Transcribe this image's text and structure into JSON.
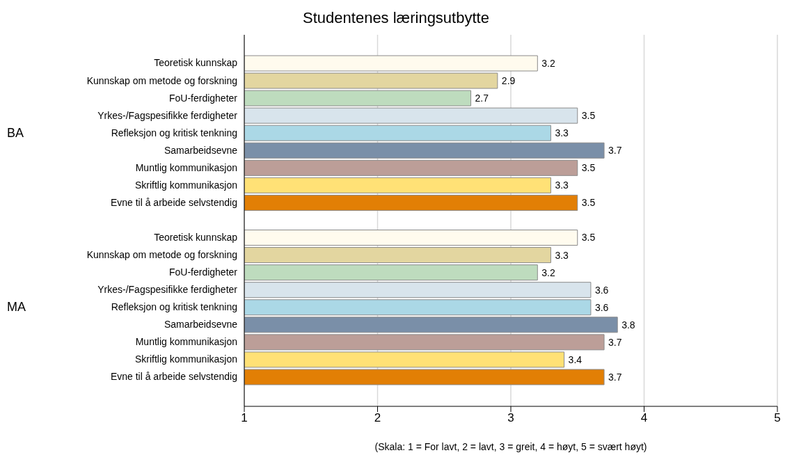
{
  "chart_data": {
    "type": "bar",
    "orientation": "horizontal",
    "title": "Studentenes læringsutbytte",
    "categories": [
      "Teoretisk kunnskap",
      "Kunnskap om metode og forskning",
      "FoU-ferdigheter",
      "Yrkes-/Fagspesifikke ferdigheter",
      "Refleksjon og kritisk tenkning",
      "Samarbeidsevne",
      "Muntlig kommunikasjon",
      "Skriftlig kommunikasjon",
      "Evne til å arbeide selvstendig",
      null,
      "Teoretisk kunnskap",
      "Kunnskap om metode og forskning",
      "FoU-ferdigheter",
      "Yrkes-/Fagspesifikke ferdigheter",
      "Refleksjon og kritisk tenkning",
      "Samarbeidsevne",
      "Muntlig kommunikasjon",
      "Skriftlig kommunikasjon",
      "Evne til å arbeide selvstendig"
    ],
    "values": [
      3.2,
      2.9,
      2.7,
      3.5,
      3.3,
      3.7,
      3.5,
      3.3,
      3.5,
      null,
      3.5,
      3.3,
      3.2,
      3.6,
      3.6,
      3.8,
      3.7,
      3.4,
      3.7
    ],
    "colors": [
      "#fffbee",
      "#e3d6a0",
      "#bedcbe",
      "#d8e4ec",
      "#abd8e6",
      "#7a8fa8",
      "#bc9e98",
      "#ffe176",
      "#e27f05",
      null,
      "#fffbee",
      "#e3d6a0",
      "#bedcbe",
      "#d8e4ec",
      "#abd8e6",
      "#7a8fa8",
      "#bc9e98",
      "#ffe176",
      "#e27f05"
    ],
    "xlim": [
      1,
      5
    ],
    "xticks": [
      1,
      2,
      3,
      4,
      5
    ],
    "grid": "x",
    "data_labels": true,
    "annotations": [
      "BA",
      "MA",
      "(Skala: 1 = For lavt, 2 = lavt, 3 = greit, 4 = høyt, 5 = svært høyt)"
    ]
  }
}
